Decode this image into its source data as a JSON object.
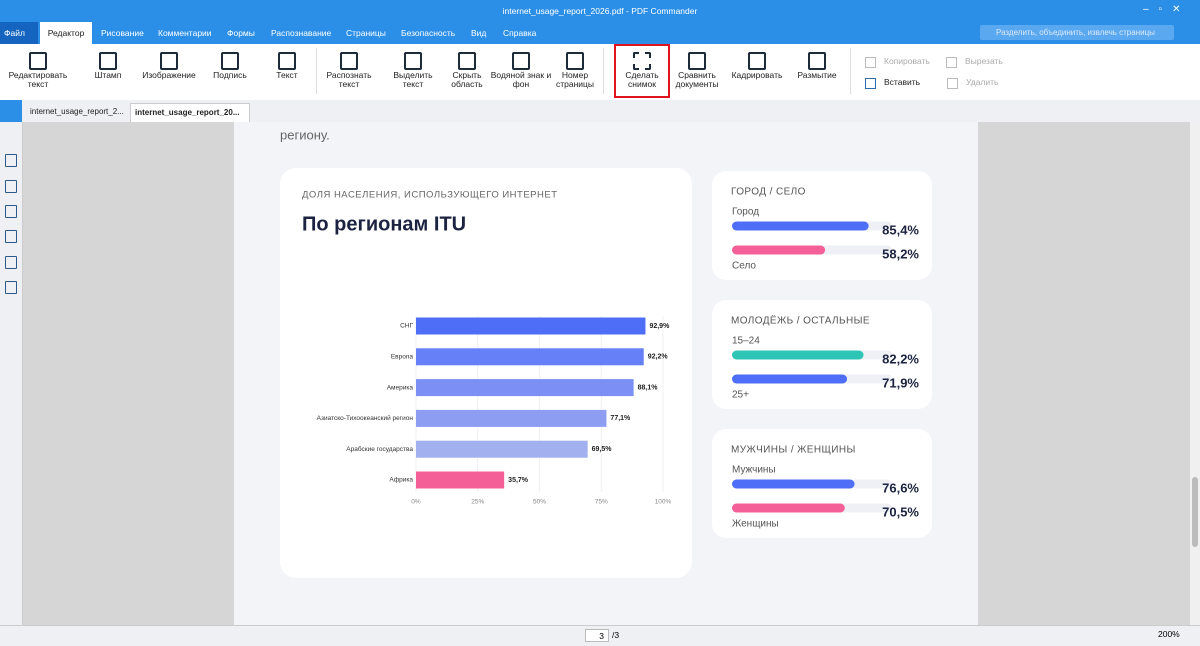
{
  "window": {
    "title": "internet_usage_report_2026.pdf - PDF Commander",
    "search_placeholder": "Разделить, объединить, извлечь страницы"
  },
  "menu": [
    "Файл",
    "Редактор",
    "Рисование",
    "Комментарии",
    "Формы",
    "Распознавание",
    "Страницы",
    "Безопасность",
    "Вид",
    "Справка"
  ],
  "toolbar": [
    "Редактировать текст",
    "Штамп",
    "Изображение",
    "Подпись",
    "Текст",
    "Распознать текст",
    "Выделить текст",
    "Скрыть область",
    "Водяной знак и фон",
    "Номер страницы",
    "Сделать снимок",
    "Сравнить документы",
    "Кадрировать",
    "Размытие"
  ],
  "edit_actions": [
    "Копировать",
    "Вырезать",
    "Вставить",
    "Удалить"
  ],
  "tabs": [
    "internet_usage_report_2...",
    "internet_usage_report_20..."
  ],
  "document": {
    "intro_text": "региону.",
    "chart": {
      "type": "bar",
      "orientation": "horizontal",
      "subtitle": "ДОЛЯ НАСЕЛЕНИЯ, ИСПОЛЬЗУЮЩЕГО ИНТЕРНЕТ",
      "title": "По регионам ITU",
      "categories": [
        "СНГ",
        "Европа",
        "Америка",
        "Азиатско-Тихоокеанский регион",
        "Арабские государства",
        "Африка"
      ],
      "values": [
        92.9,
        92.2,
        88.1,
        77.1,
        69.5,
        35.7
      ],
      "value_labels": [
        "92,9%",
        "92,2%",
        "88,1%",
        "77,1%",
        "69,5%",
        "35,7%"
      ],
      "colors": [
        "#4f6ef7",
        "#6680f7",
        "#7b8ff5",
        "#8c9df2",
        "#a3b0ef",
        "#f55f97"
      ],
      "xlim": [
        0,
        100
      ],
      "xticks": [
        {
          "value": 0,
          "label": "0%"
        },
        {
          "value": 25,
          "label": "25%"
        },
        {
          "value": 50,
          "label": "50%"
        },
        {
          "value": 75,
          "label": "75%"
        },
        {
          "value": 100,
          "label": "100%"
        }
      ],
      "grid": true
    },
    "cards": [
      {
        "title": "ГОРОД / СЕЛО",
        "xlim": [
          0,
          100
        ],
        "items": [
          {
            "label": "Город",
            "value": 85.4,
            "value_label": "85,4%",
            "color": "#4f6ef7"
          },
          {
            "label": "Село",
            "value": 58.2,
            "value_label": "58,2%",
            "color": "#f55f97"
          }
        ]
      },
      {
        "title": "МОЛОДЁЖЬ / ОСТАЛЬНЫЕ",
        "xlim": [
          0,
          100
        ],
        "items": [
          {
            "label": "15–24",
            "value": 82.2,
            "value_label": "82,2%",
            "color": "#2ec4b6"
          },
          {
            "label": "25+",
            "value": 71.9,
            "value_label": "71,9%",
            "color": "#4f6ef7"
          }
        ]
      },
      {
        "title": "МУЖЧИНЫ / ЖЕНЩИНЫ",
        "xlim": [
          0,
          100
        ],
        "items": [
          {
            "label": "Мужчины",
            "value": 76.6,
            "value_label": "76,6%",
            "color": "#4f6ef7"
          },
          {
            "label": "Женщины",
            "value": 70.5,
            "value_label": "70,5%",
            "color": "#f55f97"
          }
        ]
      }
    ]
  },
  "status": {
    "page": "3",
    "total": "/3",
    "zoom": "200%"
  }
}
